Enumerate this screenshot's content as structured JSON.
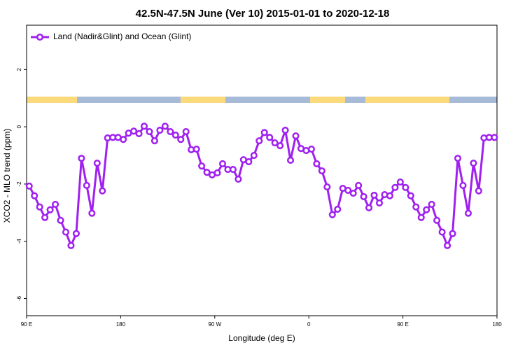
{
  "chart_data": {
    "type": "line",
    "title": "42.5N-47.5N June (Ver 10)   2015-01-01 to 2020-12-18",
    "x_label": "Longitude (deg E)",
    "y_label": "XCO2 - MLO trend (ppm)",
    "xlim": [
      90,
      540
    ],
    "ylim": [
      -6.6,
      3.55
    ],
    "xticks": [
      {
        "value": 90,
        "label": "90 E"
      },
      {
        "value": 180,
        "label": "180"
      },
      {
        "value": 270,
        "label": "90 W"
      },
      {
        "value": 360,
        "label": "0"
      },
      {
        "value": 450,
        "label": "90 E"
      },
      {
        "value": 540,
        "label": "180"
      }
    ],
    "yticks": [
      2,
      0,
      -2,
      -4,
      -6
    ],
    "legend": "top-left",
    "x": [
      92.5,
      97.5,
      102.5,
      107.5,
      112.5,
      117.5,
      122.5,
      127.5,
      132.5,
      137.5,
      142.5,
      147.5,
      152.5,
      157.5,
      162.5,
      167.5,
      172.5,
      177.5,
      182.5,
      187.5,
      192.5,
      197.5,
      202.5,
      207.5,
      212.5,
      217.5,
      222.5,
      227.5,
      232.5,
      237.5,
      242.5,
      247.5,
      252.5,
      257.5,
      262.5,
      267.5,
      272.5,
      277.5,
      282.5,
      287.5,
      292.5,
      297.5,
      302.5,
      307.5,
      312.5,
      317.5,
      322.5,
      327.5,
      332.5,
      337.5,
      342.5,
      347.5,
      352.5,
      357.5,
      362.5,
      367.5,
      372.5,
      377.5,
      382.5,
      387.5,
      392.5,
      397.5,
      402.5,
      407.5,
      412.5,
      417.5,
      422.5,
      427.5,
      432.5,
      437.5,
      442.5,
      447.5,
      452.5,
      457.5,
      462.5,
      467.5,
      472.5,
      477.5,
      482.5,
      487.5,
      492.5,
      497.5,
      502.5,
      507.5,
      512.5,
      517.5,
      522.5,
      527.5,
      532.5,
      537.5
    ],
    "series": [
      {
        "name": "Land (Nadir&Glint) and Ocean (Glint)",
        "color": "#a020f0",
        "values": [
          -2.07,
          -2.41,
          -2.8,
          -3.17,
          -2.9,
          -2.71,
          -3.27,
          -3.68,
          -4.15,
          -3.73,
          -1.1,
          -2.05,
          -3.02,
          -1.27,
          -2.24,
          -0.39,
          -0.37,
          -0.37,
          -0.44,
          -0.22,
          -0.15,
          -0.24,
          0.02,
          -0.17,
          -0.49,
          -0.12,
          0.02,
          -0.17,
          -0.29,
          -0.44,
          -0.17,
          -0.8,
          -0.78,
          -1.37,
          -1.59,
          -1.68,
          -1.61,
          -1.29,
          -1.49,
          -1.49,
          -1.83,
          -1.15,
          -1.22,
          -1.0,
          -0.49,
          -0.2,
          -0.37,
          -0.56,
          -0.66,
          -0.12,
          -1.17,
          -0.32,
          -0.76,
          -0.83,
          -0.78,
          -1.29,
          -1.54,
          -2.1,
          -3.07,
          -2.88,
          -2.15,
          -2.22,
          -2.32,
          -2.05,
          -2.44,
          -2.83,
          -2.39,
          -2.66,
          -2.37,
          -2.41,
          -2.12,
          -1.93,
          -2.12,
          -2.41,
          -2.8,
          -3.17,
          -2.9,
          -2.71,
          -3.27,
          -3.68,
          -4.15,
          -3.73,
          -1.1,
          -2.05,
          -3.02,
          -1.27,
          -2.24,
          -0.39,
          -0.37,
          -0.37
        ]
      }
    ]
  }
}
